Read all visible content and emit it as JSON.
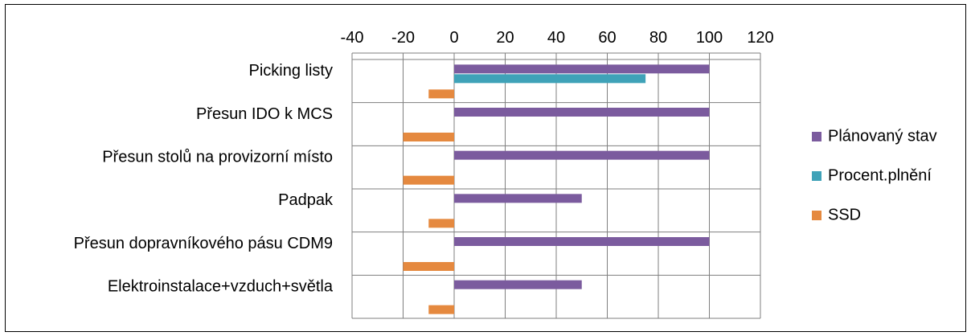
{
  "chart_data": {
    "type": "bar",
    "orientation": "horizontal",
    "categories": [
      "Picking listy",
      "Přesun IDO k MCS",
      "Přesun stolů na provizorní místo",
      "Padpak",
      "Přesun dopravníkového pásu CDM9",
      "Elektroinstalace+vzduch+světla"
    ],
    "series": [
      {
        "name": "Plánovaný stav",
        "color": "#7B5B9E",
        "values": [
          100,
          100,
          100,
          50,
          100,
          50
        ]
      },
      {
        "name": "Procent.plnění",
        "color": "#3FA2B8",
        "values": [
          75,
          0,
          0,
          0,
          0,
          0
        ]
      },
      {
        "name": "SSD",
        "color": "#E5893F",
        "values": [
          -10,
          -20,
          -20,
          -10,
          -20,
          -10
        ]
      }
    ],
    "xlim": [
      -40,
      120
    ],
    "xticks": [
      -40,
      -20,
      0,
      20,
      40,
      60,
      80,
      100,
      120
    ],
    "grid": true,
    "legend_position": "right"
  }
}
